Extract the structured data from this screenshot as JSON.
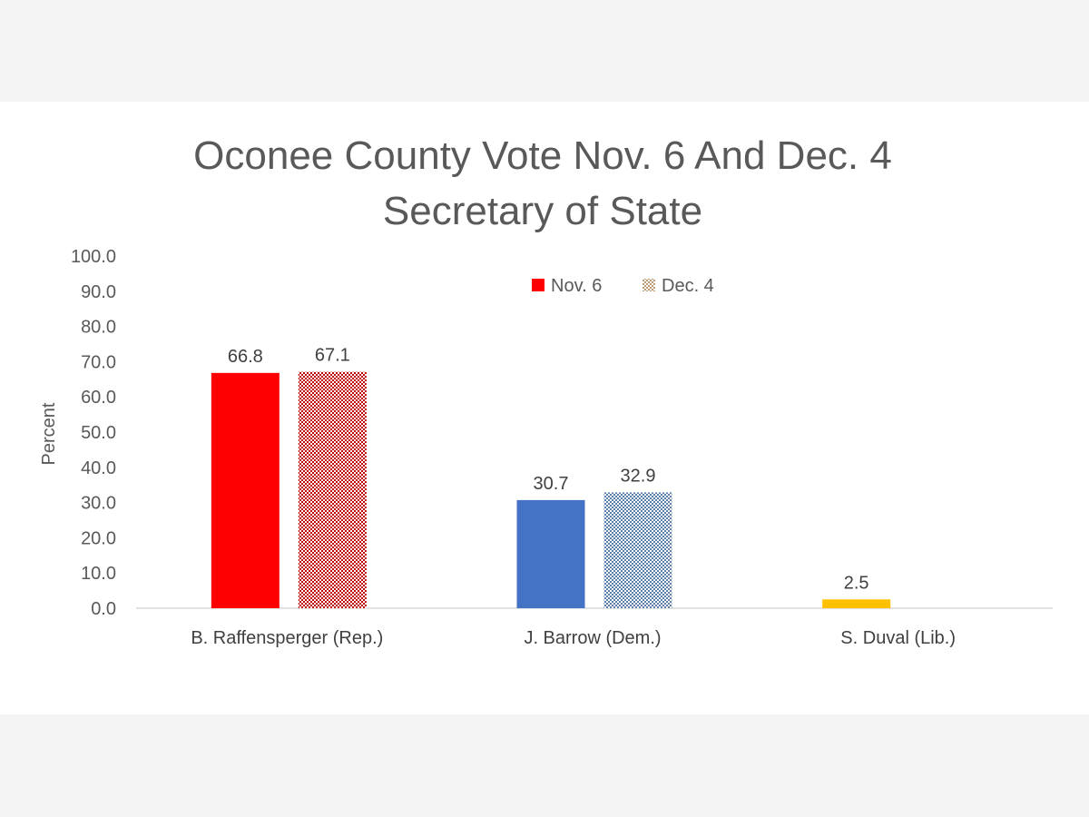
{
  "chart_data": {
    "type": "bar",
    "title_lines": [
      "Oconee County Vote Nov. 6 And Dec. 4",
      "Secretary of State"
    ],
    "ylabel": "Percent",
    "xlabel": "",
    "ylim": [
      0,
      100
    ],
    "yticks": [
      "0.0",
      "10.0",
      "20.0",
      "30.0",
      "40.0",
      "50.0",
      "60.0",
      "70.0",
      "80.0",
      "90.0",
      "100.0"
    ],
    "grid": false,
    "legend_position": "top-center",
    "categories": [
      "B. Raffensperger (Rep.)",
      "J. Barrow (Dem.)",
      "S. Duval (Lib.)"
    ],
    "series": [
      {
        "name": "Nov. 6",
        "values": [
          66.8,
          30.7,
          2.5
        ],
        "labels": [
          "66.8",
          "30.7",
          "2.5"
        ],
        "style": "solid",
        "colors": [
          "#ff0000",
          "#4472c4",
          "#ffc000"
        ]
      },
      {
        "name": "Dec. 4",
        "values": [
          67.1,
          32.9,
          null
        ],
        "labels": [
          "67.1",
          "32.9",
          ""
        ],
        "style": "pattern",
        "colors": [
          "#c00000",
          "#5b7fa8",
          "#bf9000"
        ]
      }
    ],
    "legend": [
      {
        "label": "Nov. 6",
        "color": "#ff0000",
        "style": "solid"
      },
      {
        "label": "Dec. 4",
        "color": "#bf9a77",
        "style": "pattern"
      }
    ]
  },
  "colors": {
    "panel_background": "#ffffff",
    "page_background": "#f4f4f4",
    "axis_line": "#d9d9d9",
    "text": "#595959"
  }
}
